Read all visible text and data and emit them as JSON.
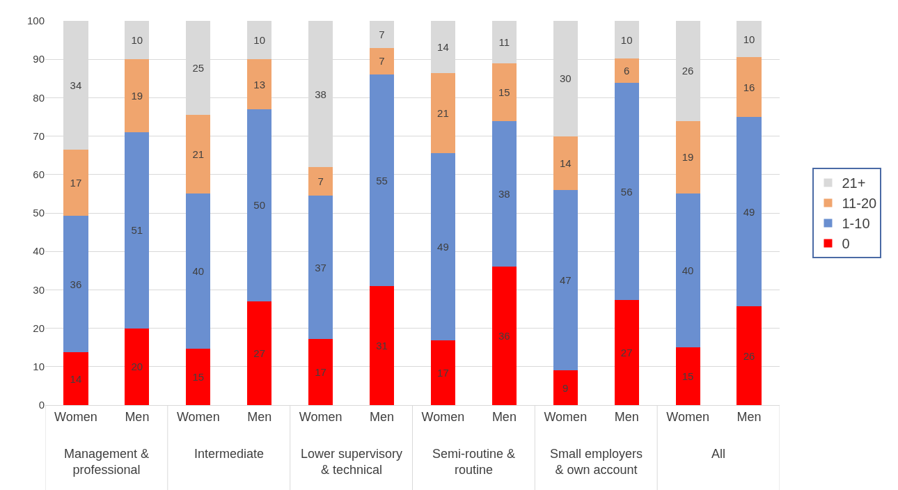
{
  "chart_data": {
    "type": "bar",
    "stacked": true,
    "categories": [
      "Women",
      "Men",
      "Women",
      "Men",
      "Women",
      "Men",
      "Women",
      "Men",
      "Women",
      "Men",
      "Women",
      "Men"
    ],
    "annotations": [
      "Management &\nprofessional",
      "Intermediate",
      "Lower supervisory\n& technical",
      "Semi-routine &\nroutine",
      "Small employers\n& own account",
      "All"
    ],
    "series": [
      {
        "name": "0",
        "color": "#ff0000",
        "values": [
          13.7,
          20,
          14.6,
          27,
          17.2,
          31,
          16.8,
          36,
          9,
          27.4,
          15,
          25.7
        ],
        "value_labels": [
          "14",
          "20",
          "15",
          "27",
          "17",
          "31",
          "17",
          "36",
          "9",
          "27",
          "15",
          "26"
        ]
      },
      {
        "name": "1-10",
        "color": "#6a8fd0",
        "values": [
          35.6,
          51,
          40.4,
          50,
          37.3,
          55,
          48.7,
          38,
          47,
          56.4,
          40,
          49.3
        ],
        "value_labels": [
          "36",
          "51",
          "40",
          "50",
          "37",
          "55",
          "49",
          "38",
          "47",
          "56",
          "40",
          "49"
        ]
      },
      {
        "name": "11-20",
        "color": "#f0a56e",
        "values": [
          17.2,
          19,
          20.5,
          13,
          7.4,
          7,
          21,
          15,
          14,
          6.4,
          19,
          15.5
        ],
        "value_labels": [
          "17",
          "19",
          "21",
          "13",
          "7",
          "7",
          "21",
          "15",
          "14",
          "6",
          "19",
          "16"
        ]
      },
      {
        "name": "21+",
        "color": "#d9d9d9",
        "values": [
          33.5,
          10,
          24.5,
          10,
          38.1,
          7,
          13.5,
          11,
          30,
          9.8,
          26,
          9.5
        ],
        "value_labels": [
          "34",
          "10",
          "25",
          "10",
          "38",
          "7",
          "14",
          "11",
          "30",
          "10",
          "26",
          "10"
        ]
      }
    ],
    "ylim": [
      0,
      100
    ],
    "yticks": [
      0,
      10,
      20,
      30,
      40,
      50,
      60,
      70,
      80,
      90,
      100
    ],
    "grid": "y",
    "legend": "right"
  }
}
